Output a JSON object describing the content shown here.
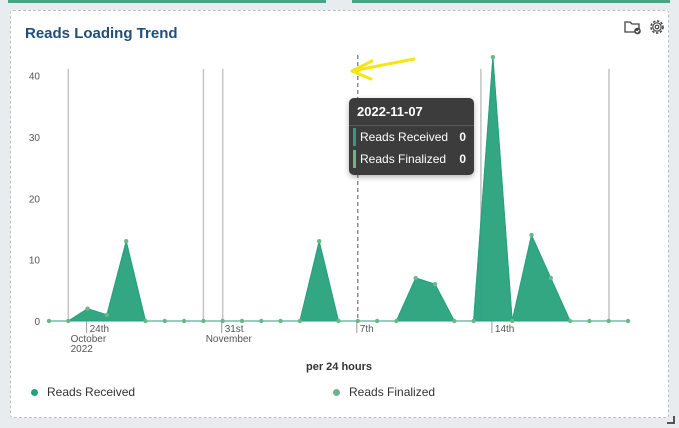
{
  "panel": {
    "title": "Reads Loading Trend"
  },
  "toolbar": {
    "icons": [
      "folder-check-icon",
      "gear-icon"
    ]
  },
  "tooltip": {
    "date": "2022-11-07",
    "rows": [
      {
        "label": "Reads Received",
        "value": "0",
        "color": "#26a17e"
      },
      {
        "label": "Reads Finalized",
        "value": "0",
        "color": "#6bb58a"
      }
    ]
  },
  "legend": [
    {
      "label": "Reads Received",
      "color": "#26a17e"
    },
    {
      "label": "Reads Finalized",
      "color": "#6bb58a"
    }
  ],
  "chart_data": {
    "type": "area",
    "xlabel": "per 24 hours",
    "x": [
      "2022-10-22",
      "2022-10-23",
      "2022-10-24",
      "2022-10-25",
      "2022-10-26",
      "2022-10-27",
      "2022-10-28",
      "2022-10-29",
      "2022-10-30",
      "2022-10-31",
      "2022-11-01",
      "2022-11-02",
      "2022-11-03",
      "2022-11-04",
      "2022-11-05",
      "2022-11-06",
      "2022-11-07",
      "2022-11-08",
      "2022-11-09",
      "2022-11-10",
      "2022-11-11",
      "2022-11-12",
      "2022-11-13",
      "2022-11-14",
      "2022-11-15",
      "2022-11-16",
      "2022-11-17",
      "2022-11-18",
      "2022-11-19",
      "2022-11-20",
      "2022-11-21"
    ],
    "x_tick_labels": [
      {
        "date": "2022-10-24",
        "lines": [
          "24th",
          "October",
          "2022"
        ]
      },
      {
        "date": "2022-10-31",
        "lines": [
          "31st",
          "November"
        ]
      },
      {
        "date": "2022-11-07",
        "lines": [
          "7th"
        ]
      },
      {
        "date": "2022-11-14",
        "lines": [
          "14th"
        ]
      }
    ],
    "yticks": [
      0,
      10,
      20,
      30,
      40
    ],
    "ylim": [
      0,
      44
    ],
    "series": [
      {
        "name": "Reads Received",
        "color": "#26a17e",
        "values": [
          0,
          0,
          2,
          1,
          13,
          0,
          0,
          0,
          0,
          0,
          0,
          0,
          0,
          0,
          13,
          0,
          0,
          0,
          0,
          7,
          6,
          0,
          0,
          43,
          0,
          14,
          7,
          0,
          0,
          0,
          0
        ]
      },
      {
        "name": "Reads Finalized",
        "color": "#6bb58a",
        "values": [
          0,
          0,
          2,
          1,
          13,
          0,
          0,
          0,
          0,
          0,
          0,
          0,
          0,
          0,
          13,
          0,
          0,
          0,
          0,
          7,
          6,
          0,
          0,
          43,
          0,
          14,
          7,
          0,
          0,
          0,
          0
        ]
      }
    ],
    "grid": false,
    "legend_position": "bottom"
  }
}
